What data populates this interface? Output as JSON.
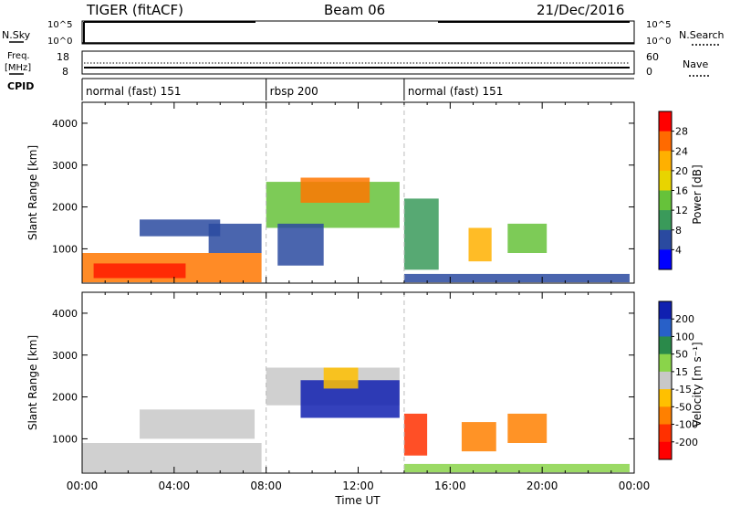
{
  "header": {
    "station": "TIGER (fitACF)",
    "beam": "Beam 06",
    "date": "21/Dec/2016"
  },
  "aux_panels": {
    "nsky_label": "N.Sky",
    "nsky_ticks": [
      "10^5",
      "10^0"
    ],
    "nsearch_label": "N.Search",
    "nsearch_ticks": [
      "10^5",
      "10^0"
    ],
    "freq_label_1": "Freq.",
    "freq_label_2": "[MHz]",
    "freq_ticks": [
      "18",
      "8"
    ],
    "nave_label": "Nave",
    "nave_ticks": [
      "60",
      "0"
    ],
    "cpid_label": "CPID"
  },
  "cpid_segments": [
    {
      "label": "normal (fast) 151",
      "start_hour": 0,
      "end_hour": 8
    },
    {
      "label": "rbsp 200",
      "start_hour": 8,
      "end_hour": 14
    },
    {
      "label": "normal (fast) 151",
      "start_hour": 14,
      "end_hour": 24
    }
  ],
  "chart_data": [
    {
      "type": "heatmap",
      "name": "power",
      "xlabel": "",
      "ylabel": "Slant Range [km]",
      "xlim": [
        0,
        24
      ],
      "ylim": [
        180,
        4500
      ],
      "y_ticks": [
        "1000",
        "2000",
        "3000",
        "4000"
      ],
      "colorbar": {
        "label": "Power [dB]",
        "ticks": [
          "28",
          "24",
          "20",
          "16",
          "12",
          "8",
          "4"
        ],
        "colors": [
          "#ff0000",
          "#ff6a00",
          "#ffb000",
          "#e8d400",
          "#66c23a",
          "#3a9a5a",
          "#2a4aa0",
          "#0000ff"
        ]
      },
      "regions": [
        {
          "t0": 0.0,
          "t1": 7.8,
          "r0": 200,
          "r1": 900,
          "color": "#ff7700"
        },
        {
          "t0": 0.5,
          "t1": 4.5,
          "r0": 300,
          "r1": 650,
          "color": "#ff1a00"
        },
        {
          "t0": 5.5,
          "t1": 7.8,
          "r0": 900,
          "r1": 1600,
          "color": "#2a4aa0"
        },
        {
          "t0": 2.5,
          "t1": 6.0,
          "r0": 1300,
          "r1": 1700,
          "color": "#2a4aa0"
        },
        {
          "t0": 8.0,
          "t1": 13.8,
          "r0": 1500,
          "r1": 2600,
          "color": "#66c23a"
        },
        {
          "t0": 9.5,
          "t1": 12.5,
          "r0": 2100,
          "r1": 2700,
          "color": "#ff7700"
        },
        {
          "t0": 8.5,
          "t1": 10.5,
          "r0": 600,
          "r1": 1600,
          "color": "#2a4aa0"
        },
        {
          "t0": 14.0,
          "t1": 23.8,
          "r0": 200,
          "r1": 400,
          "color": "#2a4aa0"
        },
        {
          "t0": 14.0,
          "t1": 15.5,
          "r0": 500,
          "r1": 2200,
          "color": "#3a9a5a"
        },
        {
          "t0": 16.8,
          "t1": 17.8,
          "r0": 700,
          "r1": 1500,
          "color": "#ffb000"
        },
        {
          "t0": 18.5,
          "t1": 20.2,
          "r0": 900,
          "r1": 1600,
          "color": "#66c23a"
        }
      ]
    },
    {
      "type": "heatmap",
      "name": "velocity",
      "xlabel": "Time UT",
      "ylabel": "Slant Range [km]",
      "xlim": [
        0,
        24
      ],
      "ylim": [
        180,
        4500
      ],
      "x_ticks": [
        "00:00",
        "04:00",
        "08:00",
        "12:00",
        "16:00",
        "20:00",
        "00:00"
      ],
      "y_ticks": [
        "1000",
        "2000",
        "3000",
        "4000"
      ],
      "colorbar": {
        "label": "Velocity [m s⁻¹]",
        "ticks": [
          "200",
          "100",
          "50",
          "15",
          "-15",
          "-50",
          "-100",
          "-200"
        ],
        "colors": [
          "#1020b0",
          "#2860c8",
          "#2a8a4a",
          "#8ad44a",
          "#c8c8c8",
          "#ffc000",
          "#ff8000",
          "#ff3000",
          "#ff0000"
        ]
      },
      "regions": [
        {
          "t0": 0.0,
          "t1": 7.8,
          "r0": 200,
          "r1": 900,
          "color": "#c8c8c8"
        },
        {
          "t0": 2.5,
          "t1": 7.5,
          "r0": 1000,
          "r1": 1700,
          "color": "#c8c8c8"
        },
        {
          "t0": 8.0,
          "t1": 13.8,
          "r0": 1800,
          "r1": 2700,
          "color": "#c8c8c8"
        },
        {
          "t0": 9.5,
          "t1": 13.8,
          "r0": 1500,
          "r1": 2400,
          "color": "#1020b0"
        },
        {
          "t0": 10.5,
          "t1": 12.0,
          "r0": 2200,
          "r1": 2700,
          "color": "#ffc000"
        },
        {
          "t0": 14.0,
          "t1": 23.8,
          "r0": 200,
          "r1": 400,
          "color": "#8ad44a"
        },
        {
          "t0": 14.0,
          "t1": 15.0,
          "r0": 600,
          "r1": 1600,
          "color": "#ff3000"
        },
        {
          "t0": 16.5,
          "t1": 18.0,
          "r0": 700,
          "r1": 1400,
          "color": "#ff8000"
        },
        {
          "t0": 18.5,
          "t1": 20.2,
          "r0": 900,
          "r1": 1600,
          "color": "#ff8000"
        }
      ]
    }
  ]
}
